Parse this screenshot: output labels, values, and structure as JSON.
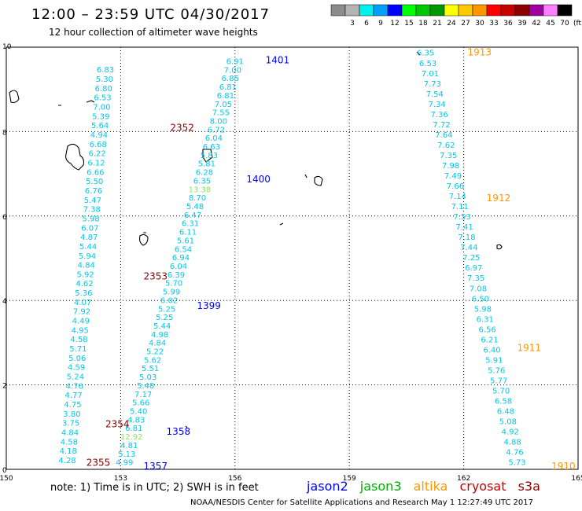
{
  "title": "12:00 – 23:59 UTC 04/30/2017",
  "subtitle": "12 hour collection of altimeter wave heights",
  "colorbar": {
    "unit": "(ft)",
    "bins": [
      {
        "label": "",
        "color": "#8c8c8c"
      },
      {
        "label": "3",
        "color": "#b4b4b4"
      },
      {
        "label": "6",
        "color": "#00f0f0"
      },
      {
        "label": "9",
        "color": "#00a0ff"
      },
      {
        "label": "12",
        "color": "#0000ff"
      },
      {
        "label": "15",
        "color": "#00ff00"
      },
      {
        "label": "18",
        "color": "#00c800"
      },
      {
        "label": "21",
        "color": "#009600"
      },
      {
        "label": "24",
        "color": "#ffff00"
      },
      {
        "label": "27",
        "color": "#ffc800"
      },
      {
        "label": "30",
        "color": "#ff9600"
      },
      {
        "label": "33",
        "color": "#ff0000"
      },
      {
        "label": "36",
        "color": "#c80000"
      },
      {
        "label": "39",
        "color": "#8c0000"
      },
      {
        "label": "42",
        "color": "#a000a0"
      },
      {
        "label": "45",
        "color": "#ff80ff"
      },
      {
        "label": "70",
        "color": "#000000"
      }
    ]
  },
  "note": "note: 1) Time is in UTC; 2) SWH is in feet",
  "legend": [
    {
      "name": "jason2",
      "color": "#0000ff"
    },
    {
      "name": "jason3",
      "color": "#00b000"
    },
    {
      "name": "altika",
      "color": "#ff9600"
    },
    {
      "name": "cryosat",
      "color": "#c80000"
    },
    {
      "name": "s3a",
      "color": "#8c0000"
    }
  ],
  "footer": "NOAA/NESDIS Center for Satellite Applications and Research   May  1 12:27:49 UTC 2017",
  "chart_data": {
    "type": "scatter",
    "xlim": [
      150,
      165
    ],
    "ylim": [
      0,
      10
    ],
    "x_ticks": [
      150,
      153,
      156,
      159,
      162,
      165
    ],
    "y_ticks": [
      0,
      2,
      4,
      6,
      8,
      10
    ],
    "grid": true,
    "colors": {
      "swh": "#00c8e6",
      "swh_alt": "#90e060",
      "jason2": "#0000ff",
      "altika": "#ff9600",
      "cryosat": "#8c0000"
    },
    "tracks": [
      {
        "x0": 152.6,
        "y0": 9.4,
        "x1": 151.6,
        "y1": 0.15,
        "color": "swh",
        "values": [
          "6.83",
          "5.30",
          "6.80",
          "6.53",
          "7.00",
          "5.39",
          "5.64",
          "4.94",
          "6.68",
          "6.22",
          "6.12",
          "6.66",
          "5.50",
          "6.76",
          "5.47",
          "7.38",
          "5.98",
          "6.07",
          "4.87",
          "5.44",
          "5.94",
          "4.84",
          "5.92",
          "4.62",
          "5.36",
          "4.07",
          "7.92",
          "4.49",
          "4.95",
          "4.58",
          "5.71",
          "5.06",
          "4.59",
          "5.24",
          "4.76",
          "4.77",
          "4.75",
          "3.80",
          "3.75",
          "4.84",
          "4.58",
          "4.18",
          "4.28"
        ]
      },
      {
        "x0": 156.0,
        "y0": 9.6,
        "x1": 153.1,
        "y1": 0.1,
        "color": "swh",
        "values": [
          "6.91",
          "7.00",
          "6.85",
          "6.81",
          "6.81",
          "7.05",
          "7.55",
          "8.00",
          "6.72",
          "6.04",
          "6.63",
          "5.83",
          "5.81",
          "6.28",
          "6.35",
          "13.38",
          "8.70",
          "5.48",
          "6.47",
          "6.31",
          "6.11",
          "5.61",
          "6.54",
          "6.94",
          "6.04",
          "6.39",
          "5.70",
          "5.99",
          "6.02",
          "5.25",
          "5.25",
          "5.44",
          "4.98",
          "4.84",
          "5.22",
          "5.62",
          "5.51",
          "5.03",
          "5.48",
          "7.17",
          "5.66",
          "5.40",
          "4.83",
          "6.81",
          "12.92",
          "4.81",
          "5.13",
          "4.99"
        ]
      },
      {
        "x0": 161.0,
        "y0": 9.8,
        "x1": 163.4,
        "y1": 0.1,
        "color": "swh",
        "values": [
          "6.35",
          "6.53",
          "7.01",
          "7.73",
          "7.54",
          "7.34",
          "7.36",
          "7.72",
          "7.64",
          "7.62",
          "7.35",
          "7.98",
          "7.49",
          "7.66",
          "7.14",
          "7.11",
          "7.53",
          "7.41",
          "7.18",
          "7.44",
          "7.25",
          "6.97",
          "7.35",
          "7.08",
          "6.50",
          "5.98",
          "6.31",
          "6.56",
          "6.21",
          "6.40",
          "5.91",
          "5.76",
          "5.77",
          "5.70",
          "6.58",
          "6.48",
          "5.08",
          "4.92",
          "4.88",
          "4.76",
          "5.73"
        ]
      }
    ],
    "highlight_values": [
      {
        "track": 1,
        "index": 15,
        "color": "swh_alt"
      },
      {
        "track": 1,
        "index": 44,
        "color": "swh_alt"
      }
    ],
    "pass_labels": [
      {
        "text": "1401",
        "x": 156.8,
        "y": 9.62,
        "color": "jason2"
      },
      {
        "text": "1400",
        "x": 156.3,
        "y": 6.8,
        "color": "jason2"
      },
      {
        "text": "1399",
        "x": 155.0,
        "y": 3.8,
        "color": "jason2"
      },
      {
        "text": "1358",
        "x": 154.2,
        "y": 0.82,
        "color": "jason2"
      },
      {
        "text": "1357",
        "x": 153.6,
        "y": 0.0,
        "color": "jason2"
      },
      {
        "text": "2352",
        "x": 154.3,
        "y": 8.02,
        "color": "cryosat"
      },
      {
        "text": "2353",
        "x": 153.6,
        "y": 4.5,
        "color": "cryosat"
      },
      {
        "text": "2354",
        "x": 152.6,
        "y": 1.0,
        "color": "cryosat"
      },
      {
        "text": "2355",
        "x": 152.1,
        "y": 0.08,
        "color": "cryosat"
      },
      {
        "text": "1913",
        "x": 162.1,
        "y": 9.8,
        "color": "altika"
      },
      {
        "text": "1912",
        "x": 162.6,
        "y": 6.35,
        "color": "altika"
      },
      {
        "text": "1911",
        "x": 163.4,
        "y": 2.8,
        "color": "altika"
      },
      {
        "text": "1910",
        "x": 164.3,
        "y": 0.0,
        "color": "altika"
      }
    ]
  }
}
